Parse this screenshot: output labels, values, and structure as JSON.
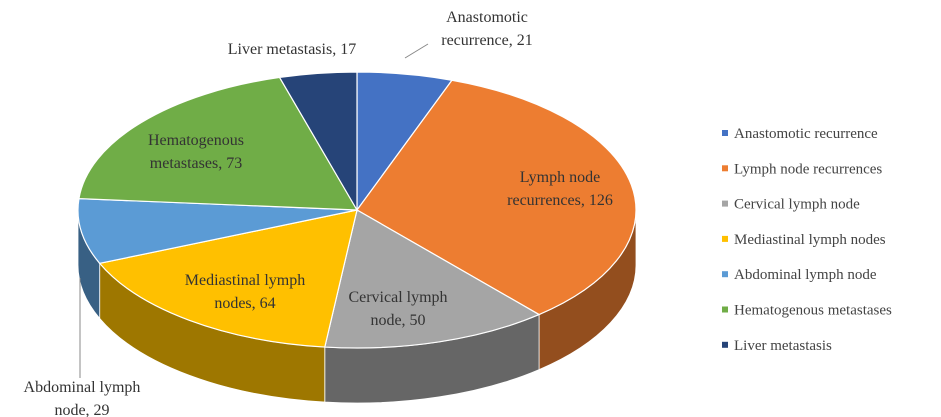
{
  "chart_data": {
    "type": "pie",
    "categories": [
      "Anastomotic recurrence",
      "Lymph node recurrences",
      "Cervical lymph node",
      "Mediastinal lymph nodes",
      "Abdominal lymph node",
      "Hematogenous metastases",
      "Liver metastasis"
    ],
    "values": [
      21,
      126,
      50,
      64,
      29,
      73,
      17
    ],
    "value_labels": [
      "Anastomotic recurrence, 21",
      "Lymph node recurrences, 126",
      "Cervical lymph node, 50",
      "Mediastinal lymph nodes, 64",
      "Abdominal lymph node, 29",
      "Hematogenous metastases, 73",
      "Liver metastasis, 17"
    ],
    "colors": [
      "#4472c4",
      "#ed7d31",
      "#a5a5a5",
      "#ffc000",
      "#5b9bd5",
      "#70ad47",
      "#264478"
    ],
    "legend": "right"
  }
}
